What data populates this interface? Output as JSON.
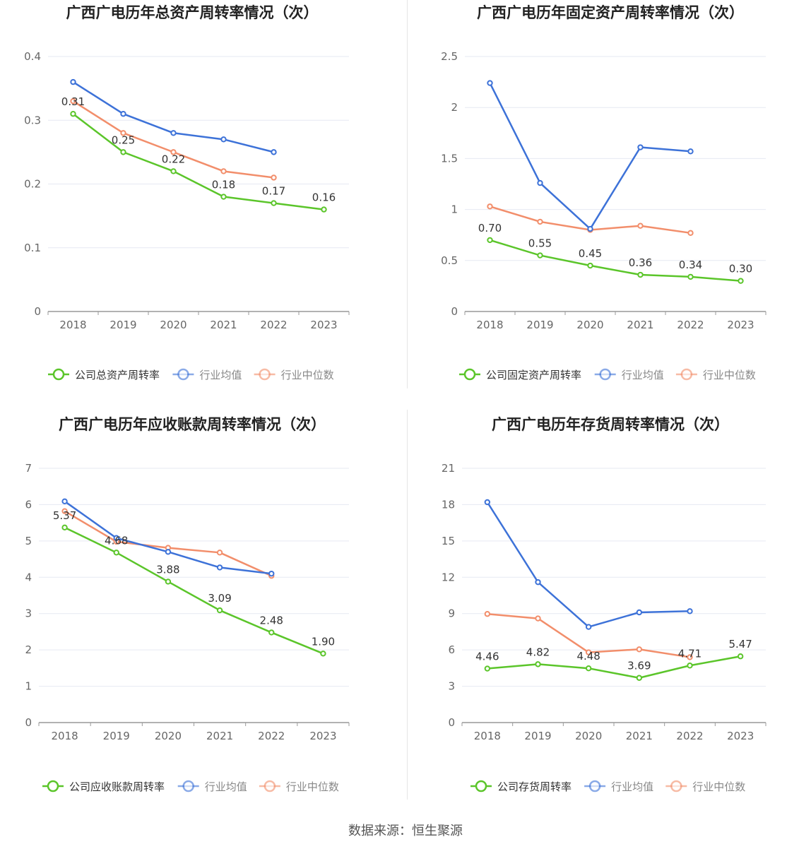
{
  "source_text": "数据来源：恒生聚源",
  "colors": {
    "company": "#5bc52a",
    "industry_avg": "#3d72d8",
    "industry_median": "#f28e6b",
    "grid": "#e6e9f2",
    "axis": "#999999",
    "tick_text": "#666666",
    "title": "#222222"
  },
  "chart_data": [
    {
      "type": "line",
      "title": "广西广电历年总资产周转率情况（次）",
      "categories": [
        "2018",
        "2019",
        "2020",
        "2021",
        "2022",
        "2023"
      ],
      "ylim": [
        0,
        0.4
      ],
      "yticks": [
        "0",
        "0.1",
        "0.2",
        "0.3",
        "0.4"
      ],
      "legend_position": "bottom",
      "series": [
        {
          "name": "公司总资产周转率",
          "key": "company",
          "values": [
            0.31,
            0.25,
            0.22,
            0.18,
            0.17,
            0.16
          ],
          "labels": [
            "0.31",
            "0.25",
            "0.22",
            "0.18",
            "0.17",
            "0.16"
          ]
        },
        {
          "name": "行业均值",
          "key": "industry_avg",
          "values": [
            0.36,
            0.31,
            0.28,
            0.27,
            0.25,
            null
          ]
        },
        {
          "name": "行业中位数",
          "key": "industry_median",
          "values": [
            0.33,
            0.28,
            0.25,
            0.22,
            0.21,
            null
          ]
        }
      ]
    },
    {
      "type": "line",
      "title": "广西广电历年固定资产周转率情况（次）",
      "categories": [
        "2018",
        "2019",
        "2020",
        "2021",
        "2022",
        "2023"
      ],
      "ylim": [
        0,
        2.5
      ],
      "yticks": [
        "0",
        "0.5",
        "1",
        "1.5",
        "2",
        "2.5"
      ],
      "legend_position": "bottom",
      "series": [
        {
          "name": "公司固定资产周转率",
          "key": "company",
          "values": [
            0.7,
            0.55,
            0.45,
            0.36,
            0.34,
            0.3
          ],
          "labels": [
            "0.70",
            "0.55",
            "0.45",
            "0.36",
            "0.34",
            "0.30"
          ]
        },
        {
          "name": "行业均值",
          "key": "industry_avg",
          "values": [
            2.24,
            1.26,
            0.81,
            1.61,
            1.57,
            null
          ]
        },
        {
          "name": "行业中位数",
          "key": "industry_median",
          "values": [
            1.03,
            0.88,
            0.8,
            0.84,
            0.77,
            null
          ]
        }
      ]
    },
    {
      "type": "line",
      "title": "广西广电历年应收账款周转率情况（次）",
      "categories": [
        "2018",
        "2019",
        "2020",
        "2021",
        "2022",
        "2023"
      ],
      "ylim": [
        0,
        7
      ],
      "yticks": [
        "0",
        "1",
        "2",
        "3",
        "4",
        "5",
        "6",
        "7"
      ],
      "legend_position": "bottom",
      "series": [
        {
          "name": "公司应收账款周转率",
          "key": "company",
          "values": [
            5.37,
            4.68,
            3.88,
            3.09,
            2.48,
            1.9
          ],
          "labels": [
            "5.37",
            "4.68",
            "3.88",
            "3.09",
            "2.48",
            "1.90"
          ]
        },
        {
          "name": "行业均值",
          "key": "industry_avg",
          "values": [
            6.09,
            5.08,
            4.7,
            4.27,
            4.1,
            null
          ]
        },
        {
          "name": "行业中位数",
          "key": "industry_median",
          "values": [
            5.82,
            4.98,
            4.81,
            4.68,
            4.04,
            null
          ]
        }
      ]
    },
    {
      "type": "line",
      "title": "广西广电历年存货周转率情况（次）",
      "categories": [
        "2018",
        "2019",
        "2020",
        "2021",
        "2022",
        "2023"
      ],
      "ylim": [
        0,
        21
      ],
      "yticks": [
        "0",
        "3",
        "6",
        "9",
        "12",
        "15",
        "18",
        "21"
      ],
      "legend_position": "bottom",
      "series": [
        {
          "name": "公司存货周转率",
          "key": "company",
          "values": [
            4.46,
            4.82,
            4.48,
            3.69,
            4.71,
            5.47
          ],
          "labels": [
            "4.46",
            "4.82",
            "4.48",
            "3.69",
            "4.71",
            "5.47"
          ]
        },
        {
          "name": "行业均值",
          "key": "industry_avg",
          "values": [
            18.2,
            11.6,
            7.9,
            9.1,
            9.2,
            null
          ]
        },
        {
          "name": "行业中位数",
          "key": "industry_median",
          "values": [
            8.97,
            8.6,
            5.8,
            6.05,
            5.4,
            null
          ]
        }
      ]
    }
  ]
}
